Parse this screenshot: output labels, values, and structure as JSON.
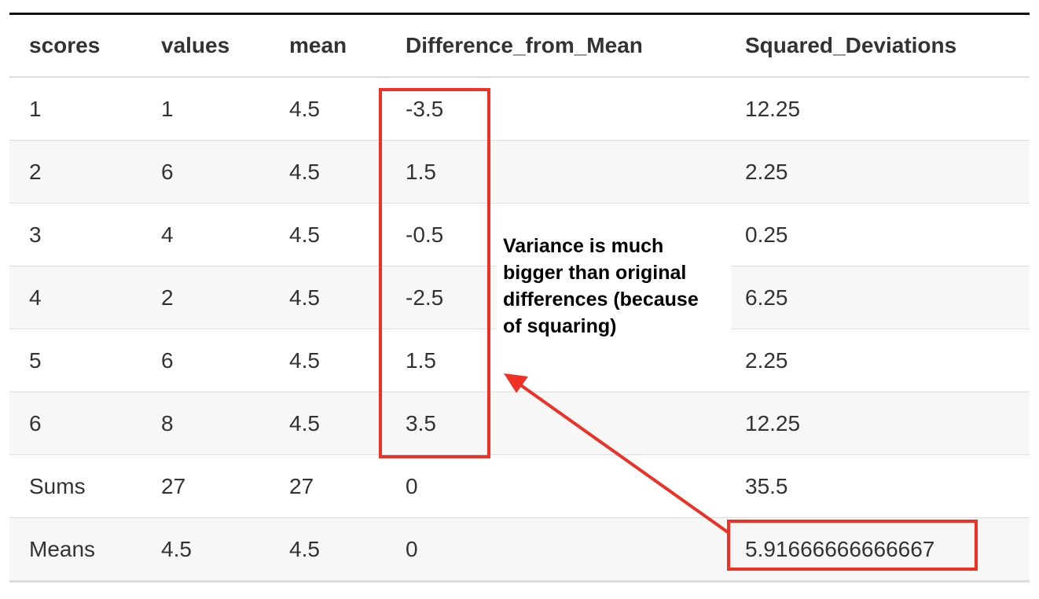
{
  "table": {
    "headers": [
      "scores",
      "values",
      "mean",
      "Difference_from_Mean",
      "Squared_Deviations"
    ],
    "rows": [
      [
        "1",
        "1",
        "4.5",
        "-3.5",
        "12.25"
      ],
      [
        "2",
        "6",
        "4.5",
        "1.5",
        "2.25"
      ],
      [
        "3",
        "4",
        "4.5",
        "-0.5",
        "0.25"
      ],
      [
        "4",
        "2",
        "4.5",
        "-2.5",
        "6.25"
      ],
      [
        "5",
        "6",
        "4.5",
        "1.5",
        "2.25"
      ],
      [
        "6",
        "8",
        "4.5",
        "3.5",
        "12.25"
      ],
      [
        "Sums",
        "27",
        "27",
        "0",
        "35.5"
      ],
      [
        "Means",
        "4.5",
        "4.5",
        "0",
        "5.91666666666667"
      ]
    ]
  },
  "annotation": {
    "text": "Variance is much\nbigger than original\ndifferences (because\nof squaring)"
  },
  "colors": {
    "highlight": "#ee3124",
    "text": "#333333",
    "stripe": "#f7f7f7",
    "rule": "#dddddd"
  }
}
